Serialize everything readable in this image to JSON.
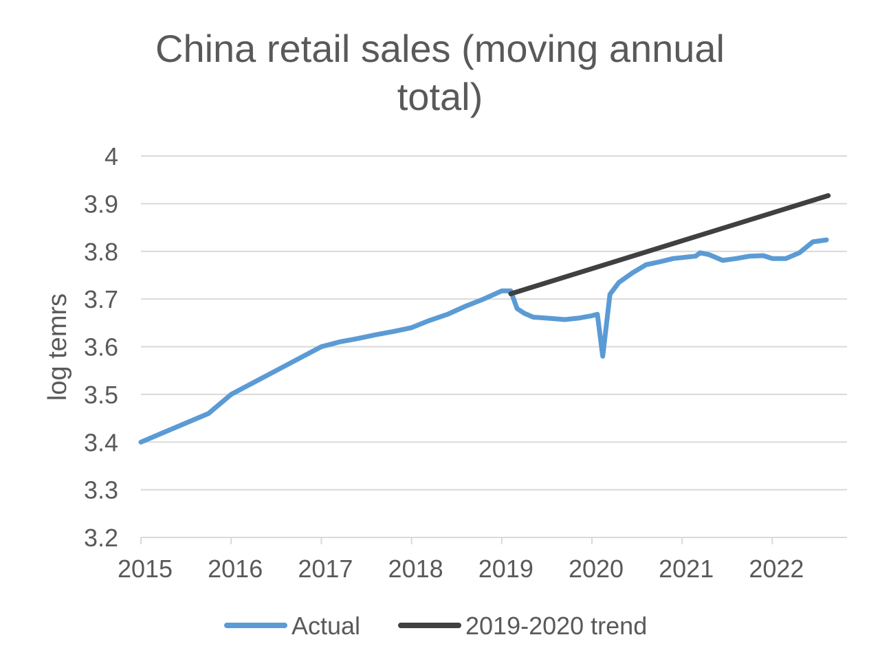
{
  "chart_data": {
    "type": "line",
    "title": "China retail sales (moving annual total)",
    "title_lines": [
      "China retail sales (moving annual",
      "total)"
    ],
    "xlabel": "",
    "ylabel": "log temrs",
    "xlim": [
      2015,
      2022.8
    ],
    "ylim": [
      3.2,
      4.0
    ],
    "x_ticks": [
      "2015",
      "2016",
      "2017",
      "2018",
      "2019",
      "2020",
      "2021",
      "2022"
    ],
    "y_ticks": [
      "3.2",
      "3.3",
      "3.4",
      "3.5",
      "3.6",
      "3.7",
      "3.8",
      "3.9",
      "4"
    ],
    "grid": true,
    "legend_position": "bottom",
    "series": [
      {
        "name": "Actual",
        "color": "#5B9BD5",
        "x": [
          2015.0,
          2015.25,
          2015.5,
          2015.75,
          2016.0,
          2016.25,
          2016.5,
          2016.75,
          2017.0,
          2017.2,
          2017.4,
          2017.6,
          2017.8,
          2018.0,
          2018.2,
          2018.4,
          2018.6,
          2018.8,
          2019.0,
          2019.1,
          2019.17,
          2019.25,
          2019.35,
          2019.5,
          2019.7,
          2019.85,
          2020.0,
          2020.06,
          2020.12,
          2020.2,
          2020.3,
          2020.45,
          2020.6,
          2020.75,
          2020.9,
          2021.0,
          2021.15,
          2021.2,
          2021.3,
          2021.45,
          2021.6,
          2021.75,
          2021.9,
          2022.0,
          2022.15,
          2022.3,
          2022.45,
          2022.6
        ],
        "y": [
          3.4,
          3.42,
          3.44,
          3.46,
          3.5,
          3.525,
          3.55,
          3.575,
          3.6,
          3.61,
          3.617,
          3.625,
          3.632,
          3.64,
          3.655,
          3.668,
          3.685,
          3.7,
          3.717,
          3.717,
          3.68,
          3.67,
          3.662,
          3.66,
          3.657,
          3.66,
          3.665,
          3.668,
          3.58,
          3.71,
          3.735,
          3.755,
          3.772,
          3.778,
          3.785,
          3.787,
          3.79,
          3.797,
          3.793,
          3.781,
          3.785,
          3.79,
          3.791,
          3.785,
          3.785,
          3.797,
          3.82,
          3.824
        ]
      },
      {
        "name": "2019-2020 trend",
        "color": "#404040",
        "x": [
          2019.1,
          2022.62
        ],
        "y": [
          3.711,
          3.917
        ]
      }
    ]
  }
}
